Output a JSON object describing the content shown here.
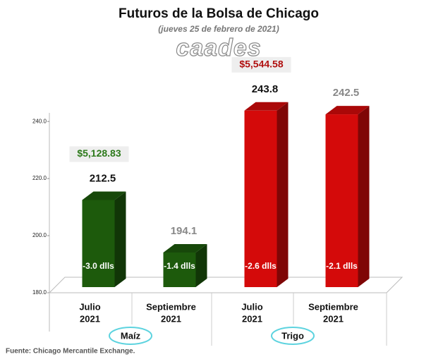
{
  "chart_data": {
    "type": "bar3d",
    "title": "Futuros de la Bolsa de Chicago",
    "subtitle": "(jueves 25 de febrero de 2021)",
    "logo": "caades",
    "groups": [
      {
        "name": "Maíz",
        "price": "$5,128.83",
        "color": "#1d5a0c",
        "categories": [
          [
            "Julio",
            "2021"
          ],
          [
            "Septiembre",
            "2021"
          ]
        ],
        "values": [
          212.5,
          194.1
        ],
        "changes": [
          "-3.0 dlls",
          "-1.4 dlls"
        ]
      },
      {
        "name": "Trigo",
        "price": "$5,544.58",
        "color": "#d40a0a",
        "categories": [
          [
            "Julio",
            "2021"
          ],
          [
            "Septiembre",
            "2021"
          ]
        ],
        "values": [
          243.8,
          242.5
        ],
        "changes": [
          "-2.6 dlls",
          "-2.1 dlls"
        ]
      }
    ],
    "ylim": [
      180,
      244
    ],
    "yticks": [
      {
        "value": 180,
        "label": "180.0"
      },
      {
        "value": 200,
        "label": "200.0"
      },
      {
        "value": 220,
        "label": "220.0"
      },
      {
        "value": 240,
        "label": "240.0"
      }
    ],
    "source": "Fuente: Chicago Mercantile Exchange."
  }
}
